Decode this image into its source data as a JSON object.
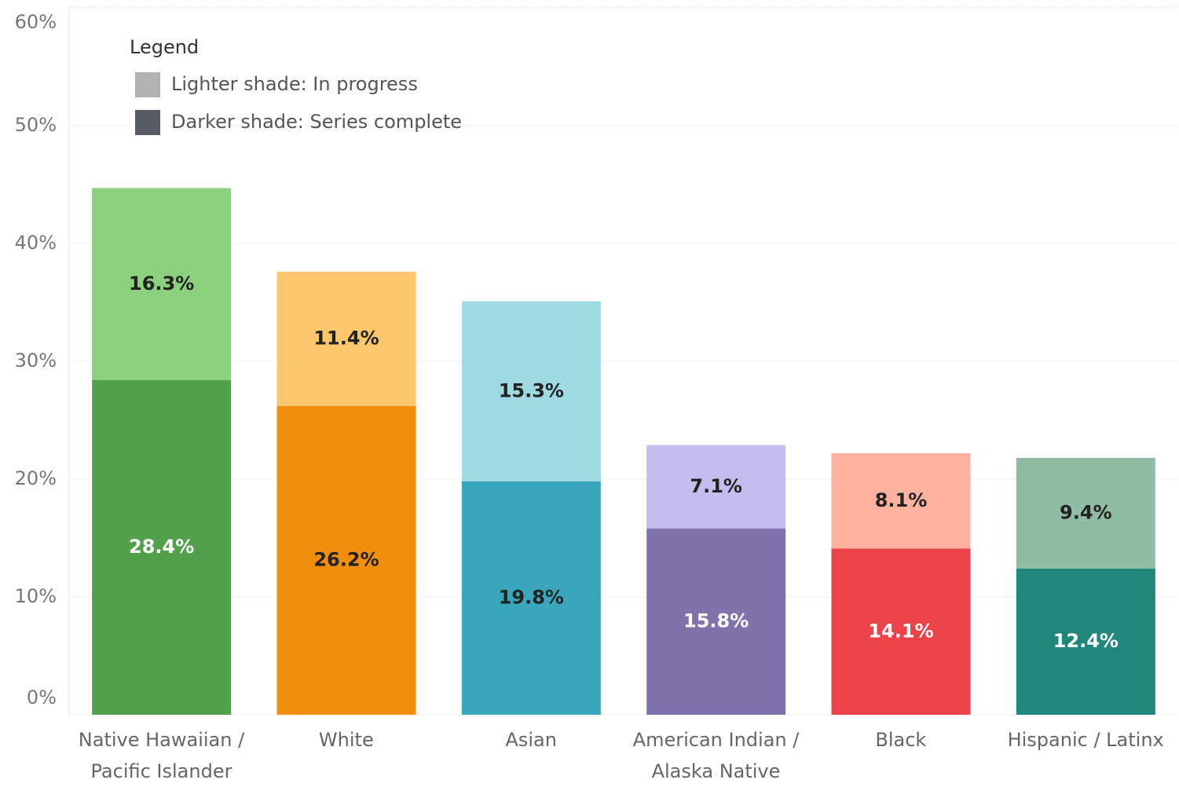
{
  "chart_data": {
    "type": "stacked_bar",
    "legend_title": "Legend",
    "legend": "top-left",
    "categories": [
      "Native Hawaiian / Pacific Islander",
      "White",
      "Asian",
      "American Indian / Alaska Native",
      "Black",
      "Hispanic / Latinx"
    ],
    "series": [
      {
        "name": "Darker shade: Series complete",
        "color": "#555a63",
        "colors": [
          "#52a04c",
          "#f28e0e",
          "#3aa6bb",
          "#8073ab",
          "#ec434a",
          "#21877b"
        ],
        "values": [
          28.4,
          26.2,
          19.8,
          15.8,
          14.1,
          12.4
        ],
        "value_labels": [
          "28.4%",
          "26.2%",
          "19.8%",
          "15.8%",
          "14.1%",
          "12.4%"
        ]
      },
      {
        "name": "Lighter shade: In progress",
        "color": "#b0b2b4",
        "colors": [
          "#8cd17d",
          "#fcc66d",
          "#9fdae3",
          "#c5bdee",
          "#ffb2a0",
          "#8fbca3"
        ],
        "values": [
          16.3,
          11.4,
          15.3,
          7.1,
          8.1,
          9.4
        ],
        "value_labels": [
          "16.3%",
          "11.4%",
          "15.3%",
          "7.1%",
          "8.1%",
          "9.4%"
        ]
      }
    ],
    "ylim": [
      0,
      60
    ],
    "yticks": [
      {
        "value": 0,
        "label": "0%"
      },
      {
        "value": 10,
        "label": "10%"
      },
      {
        "value": 20,
        "label": "20%"
      },
      {
        "value": 30,
        "label": "30%"
      },
      {
        "value": 40,
        "label": "40%"
      },
      {
        "value": 50,
        "label": "50%"
      },
      {
        "value": 60,
        "label": "60%"
      }
    ],
    "grid": true
  }
}
